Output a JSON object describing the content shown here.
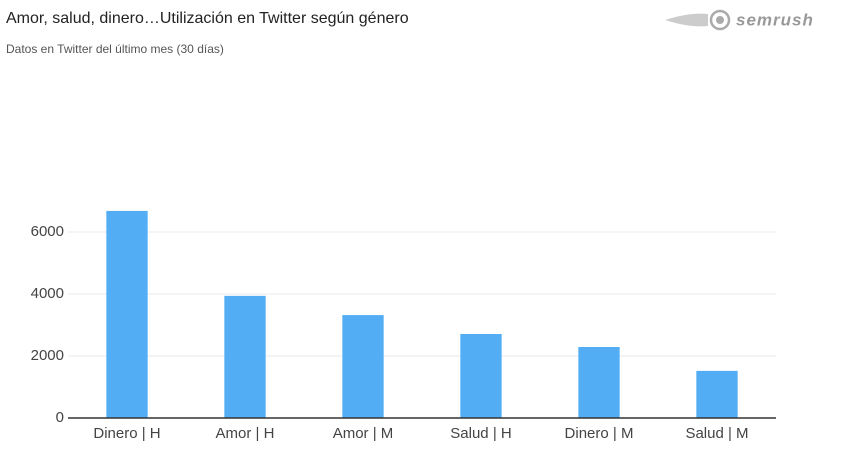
{
  "chart_data": {
    "type": "bar",
    "title": "Amor, salud, dinero…Utilización en Twitter según género",
    "subtitle": "Datos en Twitter del último mes (30 días)",
    "logo": "semrush",
    "categories": [
      "Dinero | H",
      "Amor | H",
      "Amor | M",
      "Salud | H",
      "Dinero | M",
      "Salud | M"
    ],
    "values": [
      6680,
      3940,
      3320,
      2710,
      2290,
      1520
    ],
    "color": "#52adf4",
    "ylim": [
      0,
      7000
    ],
    "yticks": [
      0,
      2000,
      4000,
      6000
    ],
    "grid": true
  }
}
